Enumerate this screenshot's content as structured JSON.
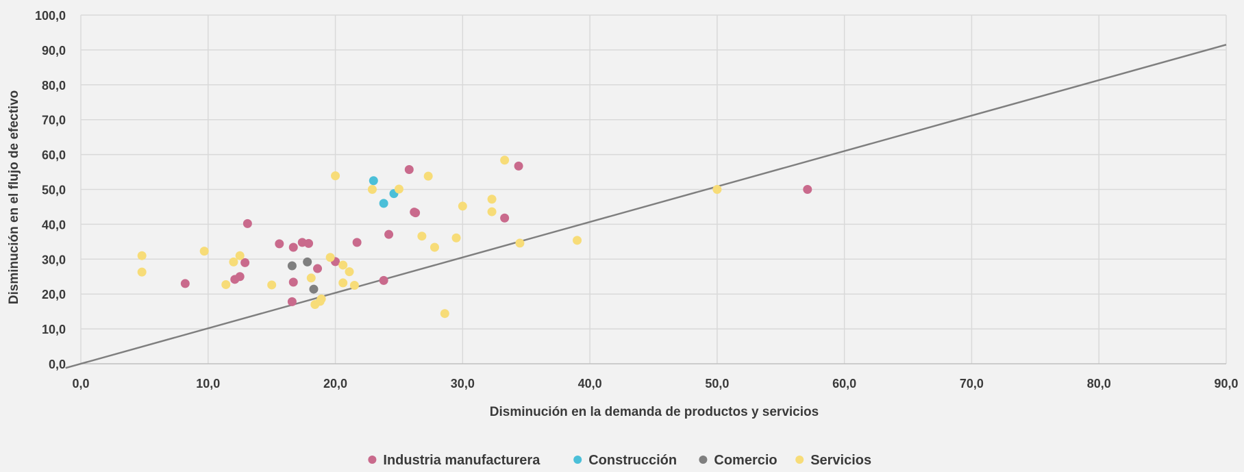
{
  "chart_data": {
    "type": "scatter",
    "title": "",
    "xlabel": "Disminución en la demanda de productos y servicios",
    "ylabel": "Disminución en el flujo de efectivo",
    "xlim": [
      0,
      90
    ],
    "ylim": [
      0,
      100
    ],
    "x_ticks": [
      "0,0",
      "10,0",
      "20,0",
      "30,0",
      "40,0",
      "50,0",
      "60,0",
      "70,0",
      "80,0",
      "90,0"
    ],
    "y_ticks": [
      "0,0",
      "10,0",
      "20,0",
      "30,0",
      "40,0",
      "50,0",
      "60,0",
      "70,0",
      "80,0",
      "90,0",
      "100,0"
    ],
    "grid": true,
    "legend_position": "bottom",
    "reference_line": {
      "from": [
        0,
        0
      ],
      "to": [
        90,
        91.5
      ],
      "color": "#7f7f7f"
    },
    "series": [
      {
        "name": "Industria manufacturera",
        "color": "#c96a8c",
        "points": [
          [
            8.2,
            23.0
          ],
          [
            12.1,
            24.2
          ],
          [
            12.5,
            25.0
          ],
          [
            12.9,
            29.0
          ],
          [
            13.1,
            40.2
          ],
          [
            15.6,
            34.4
          ],
          [
            16.6,
            17.8
          ],
          [
            16.7,
            23.4
          ],
          [
            16.7,
            33.4
          ],
          [
            17.4,
            34.8
          ],
          [
            17.9,
            34.5
          ],
          [
            18.6,
            27.3
          ],
          [
            20.0,
            29.3
          ],
          [
            21.7,
            34.8
          ],
          [
            23.8,
            23.9
          ],
          [
            24.2,
            37.1
          ],
          [
            25.8,
            55.7
          ],
          [
            26.2,
            43.5
          ],
          [
            26.3,
            43.3
          ],
          [
            33.3,
            41.8
          ],
          [
            34.4,
            56.7
          ],
          [
            57.1,
            50.0
          ]
        ]
      },
      {
        "name": "Construcción",
        "color": "#4bbfd8",
        "points": [
          [
            23.0,
            52.5
          ],
          [
            23.8,
            46.0
          ],
          [
            24.6,
            48.8
          ]
        ]
      },
      {
        "name": "Comercio",
        "color": "#7f7f7f",
        "points": [
          [
            16.6,
            28.1
          ],
          [
            17.8,
            29.2
          ],
          [
            18.3,
            21.4
          ]
        ]
      },
      {
        "name": "Servicios",
        "color": "#f7dc78",
        "points": [
          [
            4.8,
            31.0
          ],
          [
            4.8,
            26.3
          ],
          [
            9.7,
            32.3
          ],
          [
            11.4,
            22.7
          ],
          [
            12.0,
            29.2
          ],
          [
            12.5,
            31.0
          ],
          [
            15.0,
            22.6
          ],
          [
            18.1,
            24.6
          ],
          [
            18.4,
            17.0
          ],
          [
            18.8,
            17.9
          ],
          [
            18.9,
            18.6
          ],
          [
            19.6,
            30.5
          ],
          [
            20.0,
            53.9
          ],
          [
            20.6,
            28.3
          ],
          [
            20.6,
            23.2
          ],
          [
            21.1,
            26.4
          ],
          [
            21.5,
            22.5
          ],
          [
            22.9,
            50.0
          ],
          [
            25.0,
            50.1
          ],
          [
            26.8,
            36.6
          ],
          [
            27.3,
            53.8
          ],
          [
            27.8,
            33.4
          ],
          [
            28.6,
            14.4
          ],
          [
            29.5,
            36.1
          ],
          [
            30.0,
            45.2
          ],
          [
            32.3,
            47.2
          ],
          [
            32.3,
            43.6
          ],
          [
            33.3,
            58.4
          ],
          [
            34.5,
            34.6
          ],
          [
            39.0,
            35.4
          ],
          [
            50.0,
            50.0
          ]
        ]
      }
    ]
  }
}
